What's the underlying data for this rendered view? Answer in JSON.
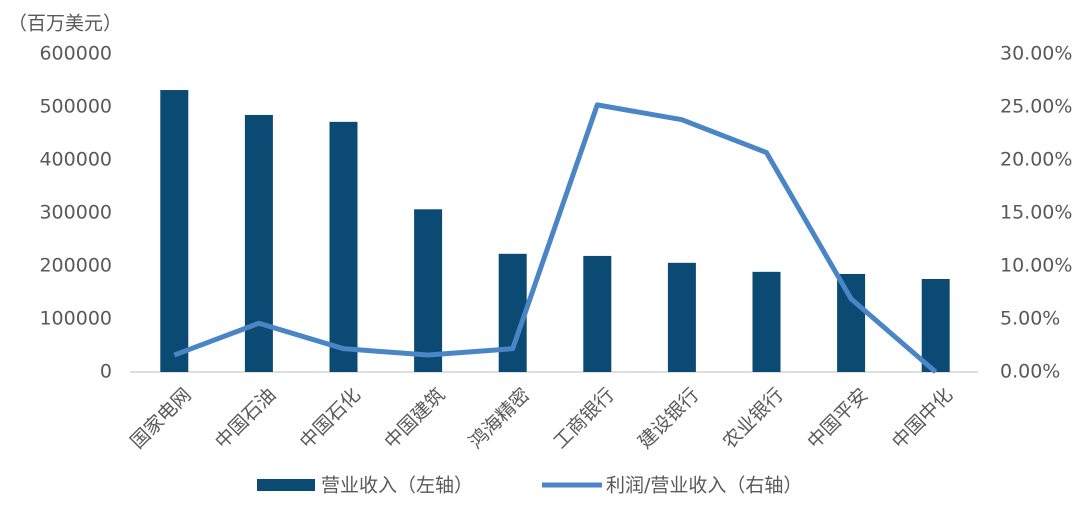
{
  "chart_data": {
    "type": "bar-line",
    "y_label": "（百万美元）",
    "categories": [
      "国家电网",
      "中国石油",
      "中国石化",
      "中国建筑",
      "鸿海精密",
      "工商银行",
      "建设银行",
      "农业银行",
      "中国平安",
      "中国中化"
    ],
    "series": [
      {
        "name": "营业收入（左轴）",
        "type": "bar",
        "color": "#0b4a72",
        "values": [
          532000,
          485000,
          472000,
          307000,
          223000,
          219000,
          206000,
          189000,
          185000,
          175500
        ]
      },
      {
        "name": "利润/营业收入（右轴）",
        "type": "line",
        "axis": "y2",
        "color": "#4a86c5",
        "values": [
          1.6,
          4.6,
          2.2,
          1.6,
          2.2,
          25.2,
          23.8,
          20.7,
          6.9,
          0.0
        ]
      }
    ],
    "ylim": [
      0,
      600000
    ],
    "yticks": [
      0,
      100000,
      200000,
      300000,
      400000,
      500000,
      600000
    ],
    "y2lim": [
      0,
      30
    ],
    "y2ticks": [
      {
        "value": 0,
        "label": "0.00%"
      },
      {
        "value": 5,
        "label": "5.00%"
      },
      {
        "value": 10,
        "label": "10.00%"
      },
      {
        "value": 15,
        "label": "15.00%"
      },
      {
        "value": 20,
        "label": "20.00%"
      },
      {
        "value": 25,
        "label": "25.00%"
      },
      {
        "value": 30,
        "label": "30.00%"
      }
    ],
    "legend": "bottom"
  }
}
